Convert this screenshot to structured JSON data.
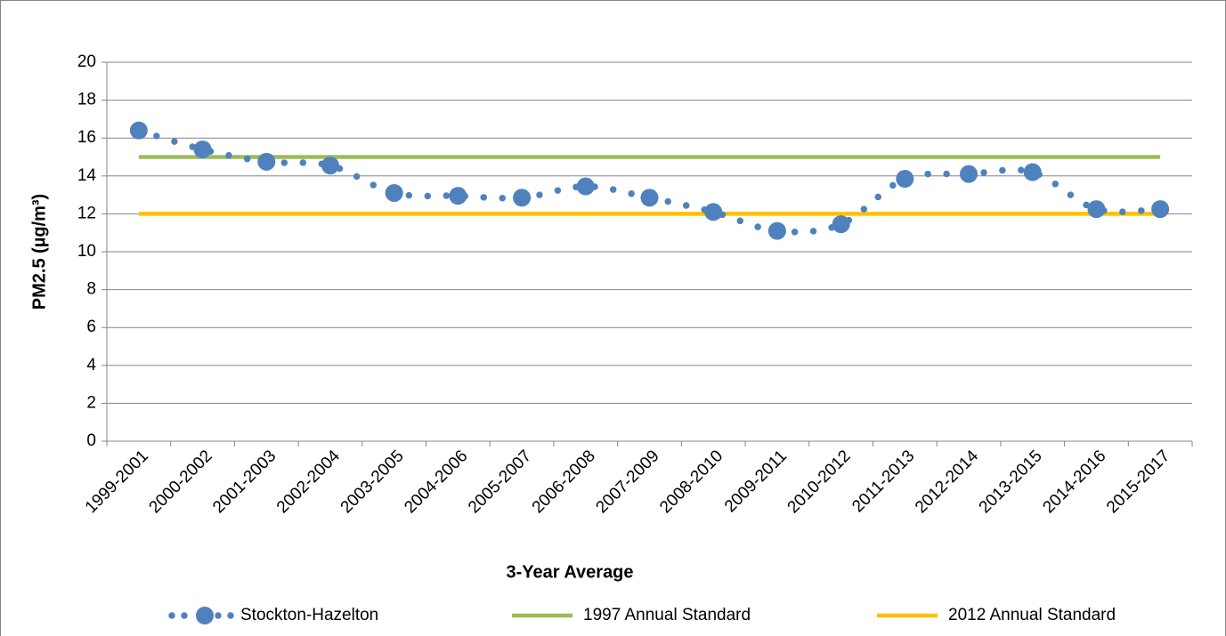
{
  "chart_data": {
    "type": "line",
    "x_label": "3-Year Average",
    "y_label": "PM2.5 (µg/m³)",
    "categories": [
      "1999-2001",
      "2000-2002",
      "2001-2003",
      "2002-2004",
      "2003-2005",
      "2004-2006",
      "2005-2007",
      "2006-2008",
      "2007-2009",
      "2008-2010",
      "2009-2011",
      "2010-2012",
      "2011-2013",
      "2012-2014",
      "2013-2015",
      "2014-2016",
      "2015-2017"
    ],
    "series": [
      {
        "name": "Stockton-Hazelton",
        "color": "#4f81bd",
        "style": "dotted-markers",
        "values": [
          16.4,
          15.4,
          14.75,
          14.55,
          13.1,
          12.95,
          12.85,
          13.45,
          12.85,
          12.1,
          11.1,
          11.45,
          13.85,
          14.1,
          14.2,
          12.25,
          12.25
        ]
      },
      {
        "name": "1997 Annual Standard",
        "color": "#9bbb59",
        "style": "solid",
        "values": [
          15,
          15,
          15,
          15,
          15,
          15,
          15,
          15,
          15,
          15,
          15,
          15,
          15,
          15,
          15,
          15,
          15
        ]
      },
      {
        "name": "2012 Annual Standard",
        "color": "#ffc000",
        "style": "solid",
        "values": [
          12,
          12,
          12,
          12,
          12,
          12,
          12,
          12,
          12,
          12,
          12,
          12,
          12,
          12,
          12,
          12,
          12
        ]
      }
    ],
    "ylim": [
      0,
      20
    ],
    "yticks": [
      0,
      2,
      4,
      6,
      8,
      10,
      12,
      14,
      16,
      18,
      20
    ],
    "grid": true,
    "legend": "bottom"
  }
}
